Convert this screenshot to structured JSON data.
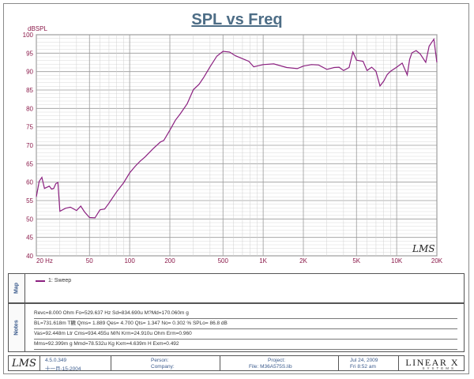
{
  "title": "SPL vs Freq",
  "chart_data": {
    "type": "line",
    "title": "SPL vs Freq",
    "ylabel": "dBSPL",
    "xlabel": "",
    "xscale": "log",
    "xlim": [
      20,
      20000
    ],
    "ylim": [
      40,
      100
    ],
    "x_ticks": [
      {
        "value": 20,
        "label": "20 Hz"
      },
      {
        "value": 50,
        "label": "50"
      },
      {
        "value": 100,
        "label": "100"
      },
      {
        "value": 200,
        "label": "200"
      },
      {
        "value": 500,
        "label": "500"
      },
      {
        "value": 1000,
        "label": "1K"
      },
      {
        "value": 2000,
        "label": "2K"
      },
      {
        "value": 5000,
        "label": "5K"
      },
      {
        "value": 10000,
        "label": "10K"
      },
      {
        "value": 20000,
        "label": "20K"
      }
    ],
    "y_ticks": [
      40,
      45,
      50,
      55,
      60,
      65,
      70,
      75,
      80,
      85,
      90,
      95,
      100
    ],
    "grid": true,
    "series": [
      {
        "name": "1: Sweep",
        "color": "#8b2080",
        "x": [
          20,
          21,
          22,
          23,
          24,
          25,
          26,
          27,
          28,
          29,
          30,
          33,
          36,
          40,
          43,
          46,
          50,
          55,
          60,
          65,
          70,
          80,
          90,
          100,
          110,
          120,
          130,
          150,
          170,
          180,
          200,
          220,
          240,
          270,
          300,
          330,
          360,
          400,
          450,
          500,
          560,
          620,
          700,
          780,
          850,
          1000,
          1200,
          1500,
          1800,
          2000,
          2300,
          2600,
          3000,
          3400,
          3700,
          4000,
          4400,
          4700,
          5000,
          5600,
          6000,
          6500,
          7000,
          7500,
          8000,
          8500,
          9000,
          10000,
          11000,
          12000,
          12500,
          13000,
          14000,
          15000,
          16500,
          17500,
          19000,
          20000
        ],
        "y": [
          56,
          60.2,
          61.3,
          58.3,
          58.6,
          58.9,
          58.1,
          58.3,
          59.6,
          59.9,
          52.1,
          52.9,
          53.2,
          52.3,
          53.5,
          51.9,
          50.4,
          50.3,
          52.5,
          52.7,
          54.3,
          57.4,
          59.8,
          62.5,
          64.3,
          65.7,
          66.8,
          69.1,
          70.9,
          71.3,
          74.1,
          76.8,
          78.6,
          81.3,
          85.1,
          86.5,
          88.5,
          91.3,
          94.2,
          95.5,
          95.3,
          94.3,
          93.5,
          92.8,
          91.3,
          91.9,
          92.1,
          91.1,
          90.8,
          91.5,
          91.9,
          91.8,
          90.6,
          91.1,
          91.2,
          90.3,
          91.1,
          95.3,
          93.1,
          92.8,
          90.3,
          91.2,
          90.1,
          86.1,
          87.4,
          89.2,
          90.1,
          91.2,
          92.3,
          89.1,
          93.3,
          95.1,
          95.7,
          94.8,
          92.5,
          96.9,
          98.8,
          92.5
        ]
      }
    ],
    "legend": [
      "1: Sweep"
    ]
  },
  "panels": {
    "map_label": "Map",
    "notes_label": "Notes",
    "legend_label": "1: Sweep",
    "notes": [
      "Revc=8.000 Ohm  Fo=529.637 Hz  Sd=834.690u M?Md=170.060m g",
      "BL=731.618m T穮  Qms= 1.889  Qes= 4.700  Qts= 1.347  No= 0.302 %  SPLo= 86.8 dB",
      "Vas=92.448m Ltr  Cms=934.455u M/N  Krm=24.910u Ohm  Erm=0.960",
      "Mms=92.399m g  Mmd=78.532u Kg  Kxm=4.639m H  Exm=0.492"
    ]
  },
  "footer": {
    "logo": "LMS",
    "version": "4.5.0.349",
    "date_built": "十一月-15-2004",
    "person_label": "Person:",
    "company_label": "Company:",
    "project_label": "Project:",
    "file_label": "File: M36A575S.lib",
    "date": "Jul 24, 2009",
    "time": "Fri  8:52 am",
    "brand": "LINEAR X",
    "brand_sub": "SYSTEMS"
  },
  "watermark": "LMS"
}
